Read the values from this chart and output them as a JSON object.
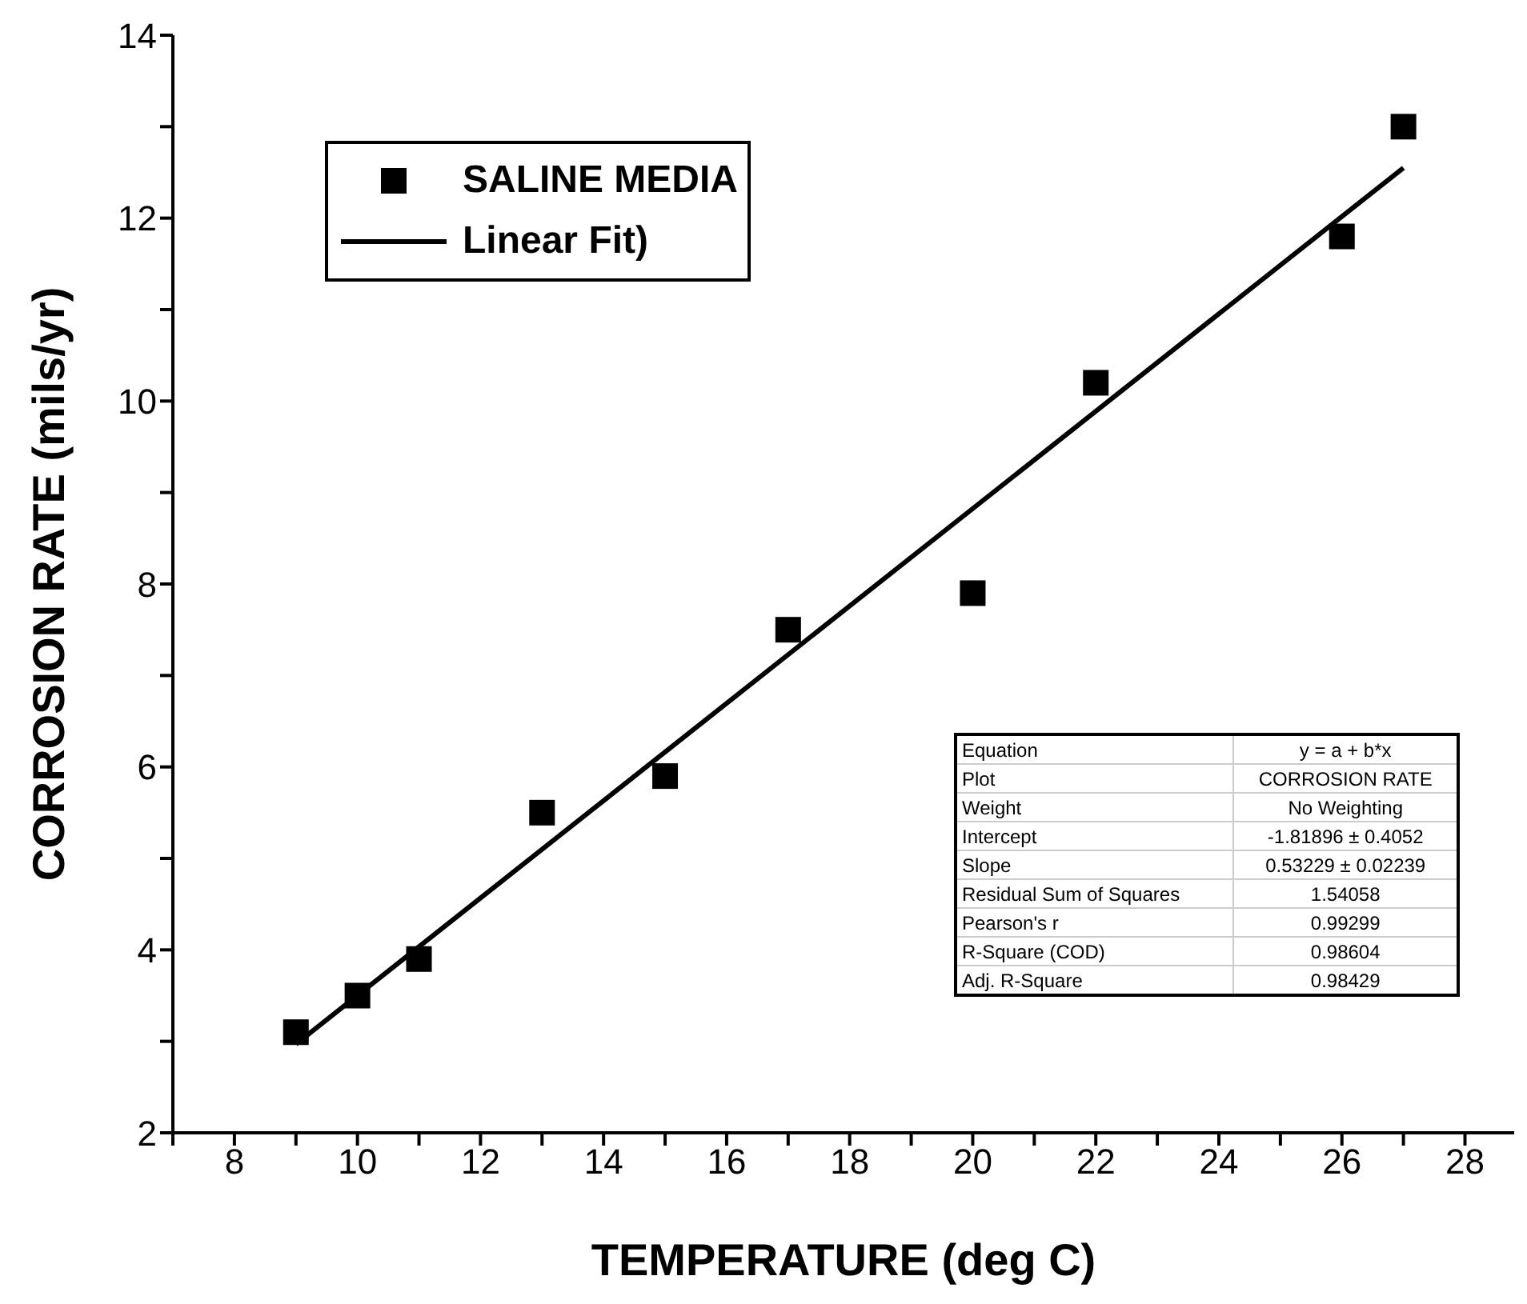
{
  "chart_data": {
    "type": "scatter",
    "xlabel": "TEMPERATURE (deg C)",
    "ylabel": "CORROSION RATE (mils/yr)",
    "xlim": [
      7,
      28.8
    ],
    "xticks": [
      {
        "value": 7,
        "label": null
      },
      8,
      {
        "value": 9,
        "label": null
      },
      10,
      {
        "value": 11,
        "label": null
      },
      12,
      {
        "value": 13,
        "label": null
      },
      14,
      {
        "value": 15,
        "label": null
      },
      16,
      {
        "value": 17,
        "label": null
      },
      18,
      {
        "value": 19,
        "label": null
      },
      20,
      {
        "value": 21,
        "label": null
      },
      22,
      {
        "value": 23,
        "label": null
      },
      24,
      {
        "value": 25,
        "label": null
      },
      26,
      {
        "value": 27,
        "label": null
      },
      28
    ],
    "ylim": [
      2,
      14
    ],
    "yticks": [
      2,
      {
        "value": 3,
        "label": null
      },
      4,
      {
        "value": 5,
        "label": null
      },
      6,
      {
        "value": 7,
        "label": null
      },
      8,
      {
        "value": 9,
        "label": null
      },
      10,
      {
        "value": 11,
        "label": null
      },
      12,
      {
        "value": 13,
        "label": null
      },
      14
    ],
    "grid": false,
    "legend": "top left",
    "series": [
      {
        "name": "SALINE MEDIA",
        "type": "scatter",
        "color": "#000000",
        "marker": "square",
        "x": [
          9,
          10,
          11,
          13,
          15,
          17,
          20,
          22,
          26,
          27
        ],
        "values": [
          3.1,
          3.5,
          3.9,
          5.5,
          5.9,
          7.5,
          7.9,
          10.2,
          11.8,
          13.0
        ]
      },
      {
        "name": "Linear Fit)",
        "type": "line",
        "color": "#000000",
        "marker": "none",
        "line_style": "solid",
        "x": [
          9,
          27
        ],
        "values": [
          2.97,
          12.55
        ]
      }
    ],
    "annotations": [
      "Equation",
      "y = a + b*x",
      "Plot",
      "CORROSION RATE",
      "Weight",
      "No Weighting",
      "Intercept",
      "-1.81896 ± 0.4052",
      "Slope",
      "0.53229 ± 0.02239",
      "Residual Sum of Squares",
      "1.54058",
      "Pearson's r",
      "0.99299",
      "R-Square (COD)",
      "0.98604",
      "Adj. R-Square",
      "0.98429"
    ]
  }
}
